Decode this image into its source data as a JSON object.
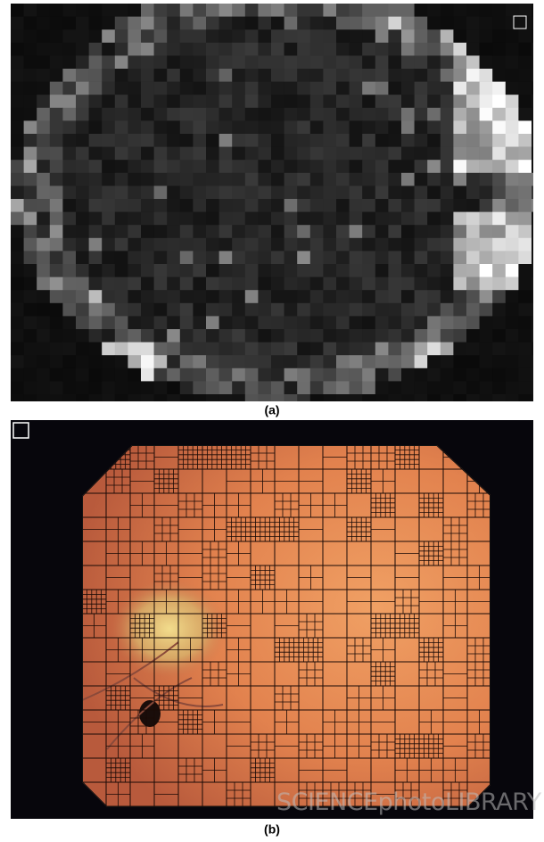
{
  "figure": {
    "panels": [
      {
        "label": "(a)"
      },
      {
        "label": "(b)",
        "watermark": "SCIENCEphotoLIBRARY"
      }
    ]
  }
}
